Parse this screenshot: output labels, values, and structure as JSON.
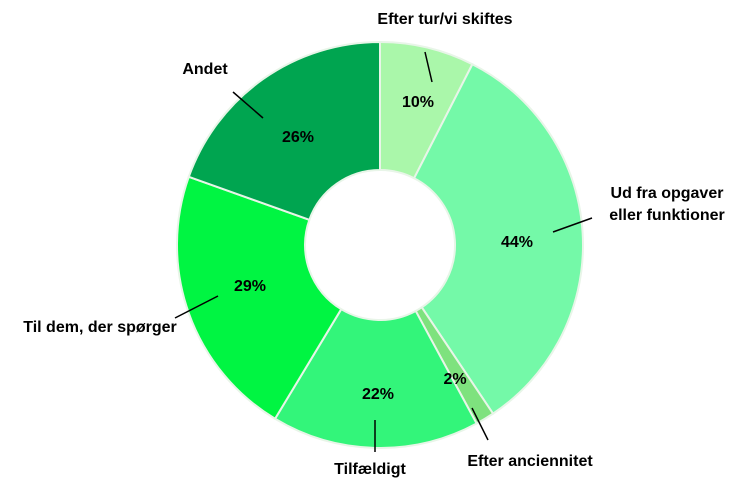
{
  "chart_data": {
    "type": "donut",
    "categories": [
      "Efter tur/vi skiftes",
      "Ud fra opgaver eller funktioner",
      "Efter anciennitet",
      "Tilfældigt",
      "Til dem, der spørger",
      "Andet"
    ],
    "values": [
      10,
      44,
      2,
      22,
      29,
      26
    ],
    "value_labels": [
      "10%",
      "44%",
      "2%",
      "22%",
      "29%",
      "26%"
    ],
    "colors": [
      "#aaf7aa",
      "#74f9a8",
      "#7ee27e",
      "#33f57a",
      "#00f542",
      "#00a550"
    ]
  }
}
